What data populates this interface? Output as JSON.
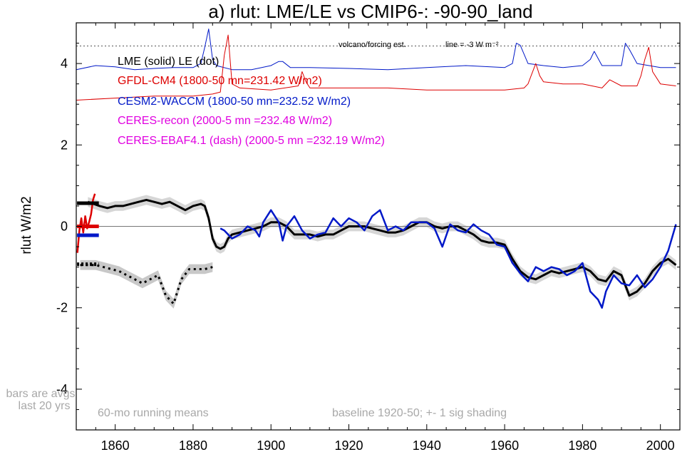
{
  "chart_data": {
    "type": "line",
    "title": "a) rlut: LME/LE vs CMIP6-: -90-90_land",
    "xlabel": "",
    "ylabel": "rlut W/m2",
    "xlim": [
      1850,
      2005
    ],
    "ylim": [
      -5,
      5
    ],
    "xticks": [
      1860,
      1880,
      1900,
      1920,
      1940,
      1960,
      1980,
      2000
    ],
    "yticks": [
      4,
      2,
      0,
      -2,
      -4
    ],
    "reference_lines": {
      "zero": 0,
      "forcing_dotted": 4.43
    },
    "annotations": {
      "forcing_label": "volcano/forcing est.",
      "scale_label": "line = -3 W m⁻²",
      "bars_note_1": "bars are avgs",
      "bars_note_2": "last 20 yrs",
      "running_means": "60-mo running means",
      "baseline_note": "baseline 1920-50; +- 1 sig shading"
    },
    "legend": {
      "lme_le": "LME (solid)   LE (dot)",
      "gfdl": "GFDL-CM4 (1800-50 mn=231.42 W/m2)",
      "cesm2": "CESM2-WACCM (1800-50 mn=232.52 W/m2)",
      "ceres_recon": "CERES-recon (2000-5 mn =232.48 W/m2)",
      "ceres_ebaf": "CERES-EBAF4.1 (dash) (2000-5 mn =232.19 W/m2)"
    },
    "colors": {
      "lme": "#000000",
      "gfdl": "#dd0000",
      "cesm2": "#0018c8",
      "ceres": "#e000e0",
      "shade": "#d6d6d6",
      "note": "#a8a8a8"
    },
    "series": [
      {
        "name": "LME (solid)",
        "color": "#000000",
        "x": [
          1853,
          1856,
          1858,
          1860,
          1862,
          1864,
          1866,
          1868,
          1870,
          1872,
          1874,
          1876,
          1878,
          1880,
          1882,
          1883,
          1884,
          1885,
          1886,
          1887,
          1888,
          1889,
          1890,
          1892,
          1894,
          1896,
          1898,
          1900,
          1902,
          1904,
          1906,
          1908,
          1910,
          1912,
          1914,
          1916,
          1918,
          1920,
          1922,
          1924,
          1926,
          1928,
          1930,
          1932,
          1934,
          1936,
          1938,
          1940,
          1942,
          1944,
          1946,
          1948,
          1950,
          1952,
          1954,
          1956,
          1958,
          1960,
          1962,
          1964,
          1966,
          1968,
          1970,
          1972,
          1974,
          1976,
          1978,
          1980,
          1982,
          1984,
          1986,
          1988,
          1990,
          1992,
          1994,
          1996,
          1998,
          2000,
          2002,
          2004
        ],
        "y": [
          0.6,
          0.5,
          0.45,
          0.5,
          0.5,
          0.55,
          0.6,
          0.65,
          0.6,
          0.55,
          0.6,
          0.5,
          0.4,
          0.5,
          0.55,
          0.5,
          0.2,
          -0.3,
          -0.5,
          -0.55,
          -0.5,
          -0.3,
          -0.2,
          -0.15,
          -0.1,
          -0.05,
          0.0,
          0.1,
          0.1,
          0.0,
          -0.2,
          -0.2,
          -0.2,
          -0.25,
          -0.2,
          -0.2,
          -0.1,
          0.0,
          0.0,
          0.0,
          -0.05,
          -0.1,
          -0.15,
          -0.15,
          -0.1,
          0.0,
          0.1,
          0.1,
          0.0,
          -0.05,
          0.0,
          0.0,
          -0.1,
          -0.2,
          -0.35,
          -0.4,
          -0.4,
          -0.45,
          -0.8,
          -1.1,
          -1.25,
          -1.3,
          -1.2,
          -1.1,
          -1.15,
          -1.1,
          -1.05,
          -1.0,
          -1.1,
          -1.3,
          -1.35,
          -1.1,
          -1.2,
          -1.7,
          -1.6,
          -1.4,
          -1.1,
          -0.9,
          -0.8,
          -0.95
        ]
      },
      {
        "name": "CESM2-WACCM",
        "color": "#0018c8",
        "x": [
          1887,
          1888,
          1890,
          1892,
          1894,
          1896,
          1897,
          1898,
          1900,
          1902,
          1903,
          1904,
          1906,
          1908,
          1910,
          1912,
          1914,
          1916,
          1918,
          1920,
          1922,
          1924,
          1926,
          1928,
          1929,
          1930,
          1932,
          1934,
          1936,
          1938,
          1940,
          1942,
          1944,
          1946,
          1948,
          1950,
          1952,
          1954,
          1956,
          1958,
          1960,
          1962,
          1964,
          1966,
          1968,
          1970,
          1972,
          1974,
          1976,
          1978,
          1980,
          1982,
          1984,
          1985,
          1986,
          1988,
          1990,
          1992,
          1994,
          1996,
          1998,
          2000,
          2002,
          2004
        ],
        "y": [
          -0.05,
          -0.1,
          -0.3,
          -0.2,
          0.0,
          -0.1,
          -0.25,
          0.1,
          0.4,
          0.1,
          -0.35,
          0.0,
          0.25,
          -0.1,
          -0.3,
          -0.2,
          -0.15,
          0.2,
          0.0,
          0.2,
          0.1,
          -0.1,
          0.25,
          0.4,
          0.15,
          -0.1,
          0.0,
          -0.1,
          0.1,
          0.1,
          0.1,
          -0.05,
          -0.5,
          0.05,
          -0.1,
          -0.15,
          0.05,
          -0.1,
          -0.2,
          -0.45,
          -0.5,
          -0.9,
          -1.15,
          -1.35,
          -1.0,
          -1.1,
          -1.0,
          -1.05,
          -1.2,
          -1.1,
          -0.9,
          -1.6,
          -1.8,
          -2.0,
          -1.6,
          -1.2,
          -1.4,
          -1.45,
          -1.2,
          -1.5,
          -1.3,
          -1.0,
          -0.6,
          0.05
        ]
      },
      {
        "name": "LE (dot)",
        "color": "#000000",
        "dashed": true,
        "x": [
          1851,
          1853,
          1855,
          1857,
          1859,
          1861,
          1863,
          1865,
          1867,
          1869,
          1871,
          1873,
          1875,
          1877,
          1879,
          1881,
          1883,
          1885
        ],
        "y": [
          -0.95,
          -0.95,
          -0.95,
          -1.0,
          -1.05,
          -1.1,
          -1.2,
          -1.3,
          -1.4,
          -1.3,
          -1.2,
          -1.7,
          -1.9,
          -1.3,
          -1.05,
          -1.05,
          -1.05,
          -1.0
        ]
      },
      {
        "name": "volcano/forcing est. (CESM2)",
        "color": "#0018c8",
        "x": [
          1850,
          1855,
          1860,
          1865,
          1870,
          1875,
          1880,
          1882,
          1883,
          1884,
          1885,
          1886,
          1890,
          1895,
          1900,
          1902,
          1903,
          1905,
          1910,
          1920,
          1930,
          1940,
          1950,
          1960,
          1962,
          1963,
          1964,
          1966,
          1970,
          1975,
          1980,
          1982,
          1983,
          1985,
          1990,
          1991,
          1992,
          1994,
          2000,
          2004
        ],
        "y": [
          3.85,
          3.95,
          3.92,
          3.85,
          3.88,
          3.9,
          3.9,
          4.0,
          4.4,
          4.85,
          4.1,
          3.95,
          3.85,
          3.85,
          3.95,
          4.05,
          4.05,
          3.9,
          3.9,
          3.88,
          3.85,
          3.9,
          3.95,
          3.9,
          4.0,
          4.5,
          4.45,
          4.0,
          3.95,
          3.9,
          3.95,
          4.1,
          4.3,
          3.95,
          3.95,
          4.5,
          4.35,
          4.0,
          3.9,
          3.9
        ]
      },
      {
        "name": "volcano/forcing est. (GFDL)",
        "color": "#dd0000",
        "x": [
          1850,
          1860,
          1870,
          1880,
          1885,
          1887,
          1888,
          1889,
          1890,
          1892,
          1900,
          1907,
          1908,
          1909,
          1910,
          1920,
          1930,
          1940,
          1950,
          1960,
          1965,
          1966,
          1967,
          1968,
          1969,
          1970,
          1975,
          1980,
          1985,
          1987,
          1990,
          1994,
          1995,
          1996,
          1997,
          1998,
          2000,
          2004
        ],
        "y": [
          3.1,
          3.15,
          3.2,
          3.2,
          3.25,
          3.3,
          4.2,
          4.7,
          3.5,
          3.4,
          3.35,
          3.45,
          3.8,
          3.55,
          3.4,
          3.4,
          3.4,
          3.35,
          3.35,
          3.35,
          3.4,
          3.5,
          3.75,
          4.0,
          3.7,
          3.55,
          3.5,
          3.5,
          3.4,
          3.6,
          3.45,
          3.45,
          3.7,
          4.1,
          4.4,
          3.8,
          3.5,
          3.45
        ]
      }
    ],
    "shading": {
      "name": "LME +- 1 sig",
      "color": "#d6d6d6",
      "half_width": 0.12
    },
    "le_shading": {
      "name": "LE +- 1 sig",
      "color": "#c8c8c8",
      "half_width": 0.12
    },
    "bars": {
      "note": "bars are avgs last 20 yrs",
      "items": [
        {
          "name": "LME",
          "color": "#000000",
          "y": 0.57
        },
        {
          "name": "CESM2-WACCM",
          "color": "#0018c8",
          "y": -0.22
        },
        {
          "name": "GFDL-CM4",
          "color": "#dd0000",
          "y": 0.0
        },
        {
          "name": "LE",
          "color": "#000000",
          "y": -0.93,
          "dashed": true
        }
      ]
    },
    "gfdl_short": {
      "name": "GFDL-CM4 early",
      "color": "#dd0000",
      "x": [
        1850.3,
        1850.8,
        1851.3,
        1851.8,
        1852.3,
        1852.8,
        1853.3,
        1853.8,
        1854.3,
        1854.8
      ],
      "y": [
        -0.65,
        -0.1,
        0.2,
        -0.15,
        0.25,
        -0.05,
        0.1,
        0.3,
        0.65,
        0.8
      ]
    }
  }
}
